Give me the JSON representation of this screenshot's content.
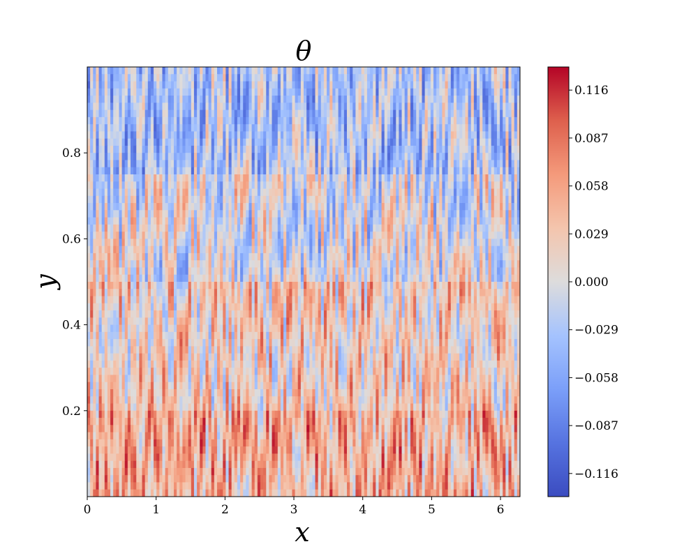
{
  "chart_data": {
    "type": "heatmap",
    "title": "θ",
    "xlabel": "x",
    "ylabel": "y",
    "xlim": [
      0,
      6.2832
    ],
    "ylim": [
      0,
      1
    ],
    "x_ticks": [
      "0",
      "1",
      "2",
      "3",
      "4",
      "5",
      "6"
    ],
    "y_ticks": [
      "0.2",
      "0.4",
      "0.6",
      "0.8"
    ],
    "colormap": "coolwarm",
    "colorbar": {
      "vmin": -0.13,
      "vmax": 0.13,
      "ticks": [
        "0.116",
        "0.087",
        "0.058",
        "0.029",
        "0.000",
        "−0.029",
        "−0.058",
        "−0.087",
        "−0.116"
      ],
      "colors": {
        "low": "#3b4cc0",
        "mid": "#dddcdc",
        "high": "#b40426"
      }
    },
    "field_description_by_height": [
      {
        "y_range": [
          0.0,
          0.2
        ],
        "mean_theta": 0.045
      },
      {
        "y_range": [
          0.2,
          0.5
        ],
        "mean_theta": 0.025
      },
      {
        "y_range": [
          0.5,
          0.75
        ],
        "mean_theta": -0.005
      },
      {
        "y_range": [
          0.75,
          1.0
        ],
        "mean_theta": -0.03
      }
    ],
    "grid": false,
    "legend": "colorbar-right"
  }
}
